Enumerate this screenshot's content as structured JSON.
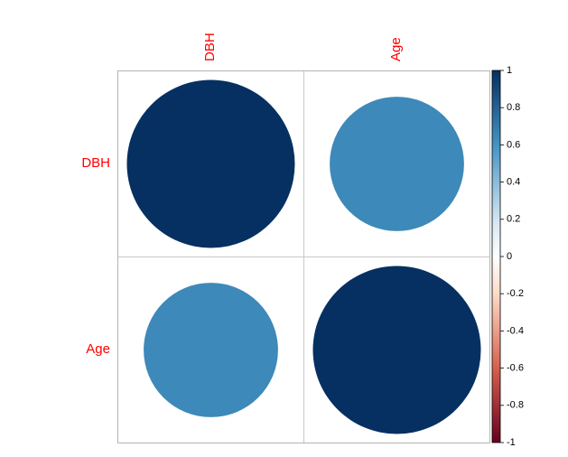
{
  "chart_data": {
    "type": "heatmap",
    "title": "",
    "variables": [
      "DBH",
      "Age"
    ],
    "matrix": [
      [
        1.0,
        0.64
      ],
      [
        0.64,
        1.0
      ]
    ],
    "colorbar": {
      "range": [
        -1,
        1
      ],
      "ticks": [
        "1",
        "0.8",
        "0.6",
        "0.4",
        "0.2",
        "0",
        "-0.2",
        "-0.4",
        "-0.6",
        "-0.8",
        "-1"
      ],
      "tick_values": [
        1,
        0.8,
        0.6,
        0.4,
        0.2,
        0,
        -0.2,
        -0.4,
        -0.6,
        -0.8,
        -1
      ],
      "stops": [
        {
          "v": -1.0,
          "color": "#67001F"
        },
        {
          "v": -0.6,
          "color": "#D6604D"
        },
        {
          "v": -0.2,
          "color": "#FDDBC7"
        },
        {
          "v": 0.0,
          "color": "#FFFFFF"
        },
        {
          "v": 0.2,
          "color": "#D1E5F0"
        },
        {
          "v": 0.6,
          "color": "#4393C3"
        },
        {
          "v": 1.0,
          "color": "#053061"
        }
      ]
    },
    "glyph": "circle",
    "label_color": "#FF0000",
    "grid": true
  }
}
